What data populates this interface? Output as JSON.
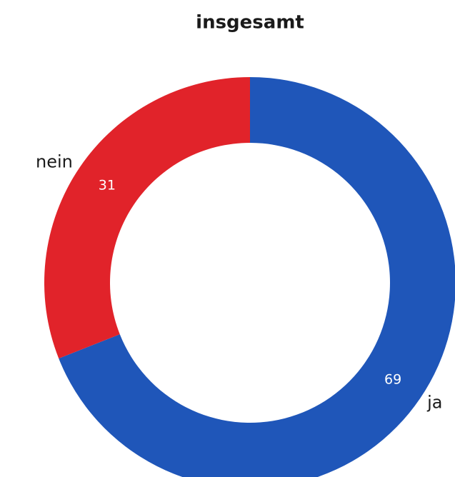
{
  "chart_data": {
    "type": "pie",
    "title": "insgesamt",
    "categories": [
      "ja",
      "nein"
    ],
    "values": [
      69,
      31
    ],
    "colors": [
      "#1f56b9",
      "#e1232a"
    ],
    "donut": true
  }
}
